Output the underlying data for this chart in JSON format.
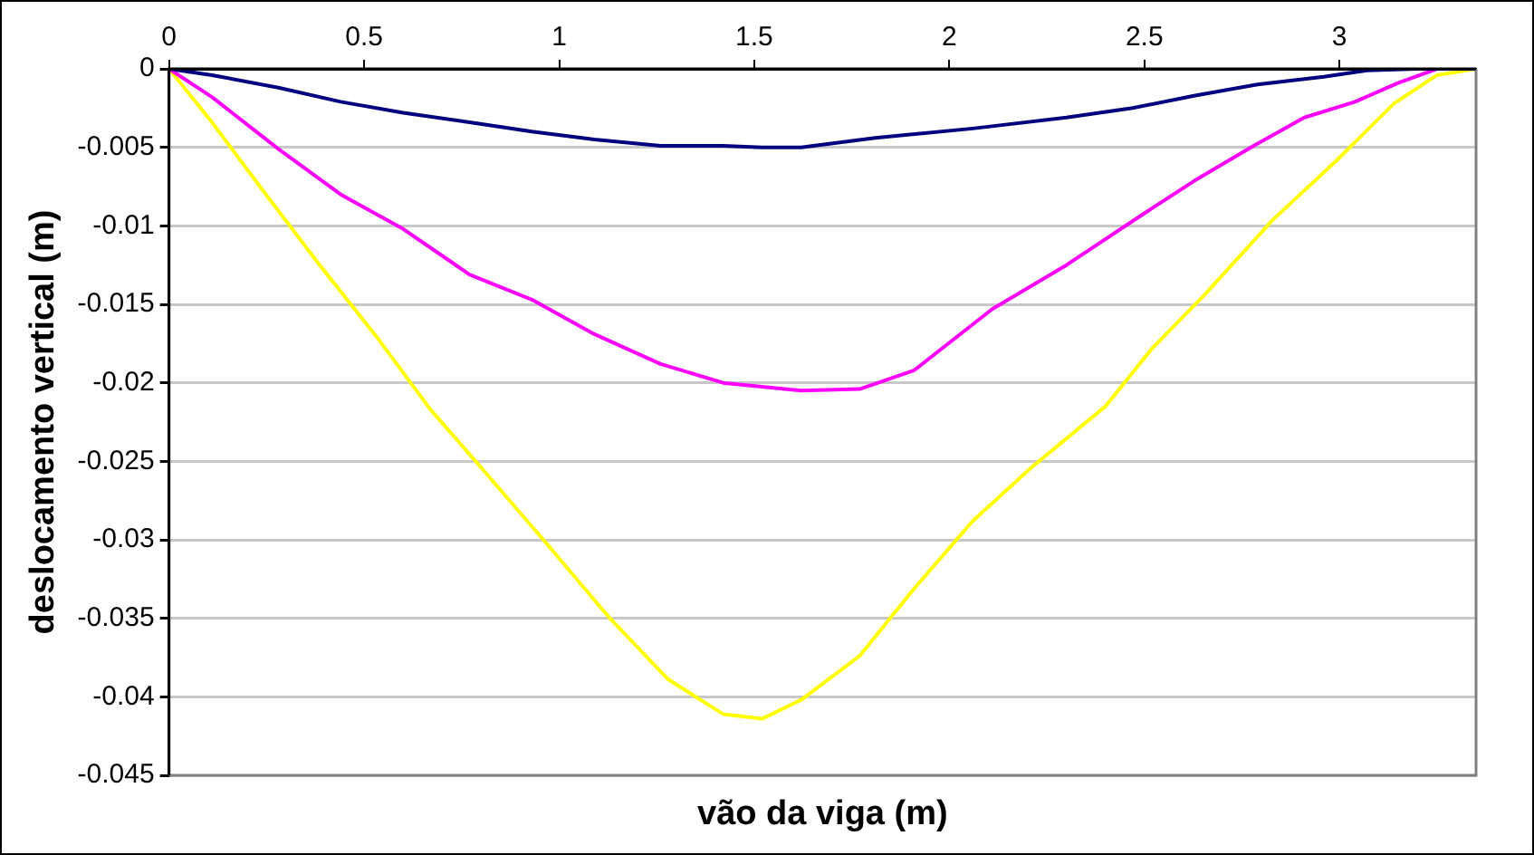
{
  "chart_data": {
    "type": "line",
    "xlabel": "vão da viga (m)",
    "ylabel": "deslocamento vertical (m)",
    "xlim": [
      0,
      3.35
    ],
    "xticks": [
      0,
      0.5,
      1,
      1.5,
      2,
      2.5,
      3
    ],
    "ylim": [
      -0.045,
      0
    ],
    "yticks": [
      0,
      -0.005,
      -0.01,
      -0.015,
      -0.02,
      -0.025,
      -0.03,
      -0.035,
      -0.04,
      -0.045
    ],
    "grid": "y",
    "legend": false,
    "marker": "none",
    "line_style": "solid",
    "series": [
      {
        "color": "#000080",
        "x": [
          0,
          0.11,
          0.28,
          0.44,
          0.6,
          0.77,
          0.93,
          1.09,
          1.26,
          1.42,
          1.52,
          1.62,
          1.81,
          2.06,
          2.3,
          2.47,
          2.63,
          2.79,
          2.96,
          3.07,
          3.2,
          3.35
        ],
        "values": [
          0,
          -0.0004,
          -0.0012,
          -0.0021,
          -0.0028,
          -0.0034,
          -0.004,
          -0.0045,
          -0.0049,
          -0.0049,
          -0.005,
          -0.005,
          -0.0044,
          -0.0038,
          -0.0031,
          -0.0025,
          -0.0017,
          -0.001,
          -0.0005,
          -0.0001,
          0,
          0
        ]
      },
      {
        "color": "#ff00ff",
        "x": [
          0,
          0.11,
          0.28,
          0.44,
          0.6,
          0.77,
          0.93,
          1.09,
          1.26,
          1.42,
          1.62,
          1.77,
          1.91,
          2.11,
          2.3,
          2.5,
          2.63,
          2.78,
          2.91,
          3.04,
          3.15,
          3.25,
          3.35
        ],
        "values": [
          0,
          -0.0018,
          -0.0051,
          -0.008,
          -0.0102,
          -0.0131,
          -0.0147,
          -0.0169,
          -0.0188,
          -0.02,
          -0.0205,
          -0.0204,
          -0.0192,
          -0.0153,
          -0.0125,
          -0.0092,
          -0.0071,
          -0.0049,
          -0.0031,
          -0.0021,
          -0.0009,
          0,
          0
        ]
      },
      {
        "color": "#ffff00",
        "x": [
          0,
          0.11,
          0.23,
          0.38,
          0.53,
          0.67,
          0.8,
          0.97,
          1.13,
          1.28,
          1.42,
          1.52,
          1.62,
          1.77,
          1.91,
          2.06,
          2.21,
          2.4,
          2.52,
          2.65,
          2.83,
          2.99,
          3.14,
          3.25,
          3.35
        ],
        "values": [
          0,
          -0.0034,
          -0.0074,
          -0.0123,
          -0.017,
          -0.0217,
          -0.0254,
          -0.0303,
          -0.035,
          -0.0389,
          -0.0411,
          -0.0414,
          -0.0402,
          -0.0374,
          -0.0331,
          -0.0288,
          -0.0254,
          -0.0215,
          -0.0178,
          -0.0145,
          -0.0096,
          -0.0059,
          -0.0022,
          -0.0004,
          0
        ]
      }
    ]
  }
}
